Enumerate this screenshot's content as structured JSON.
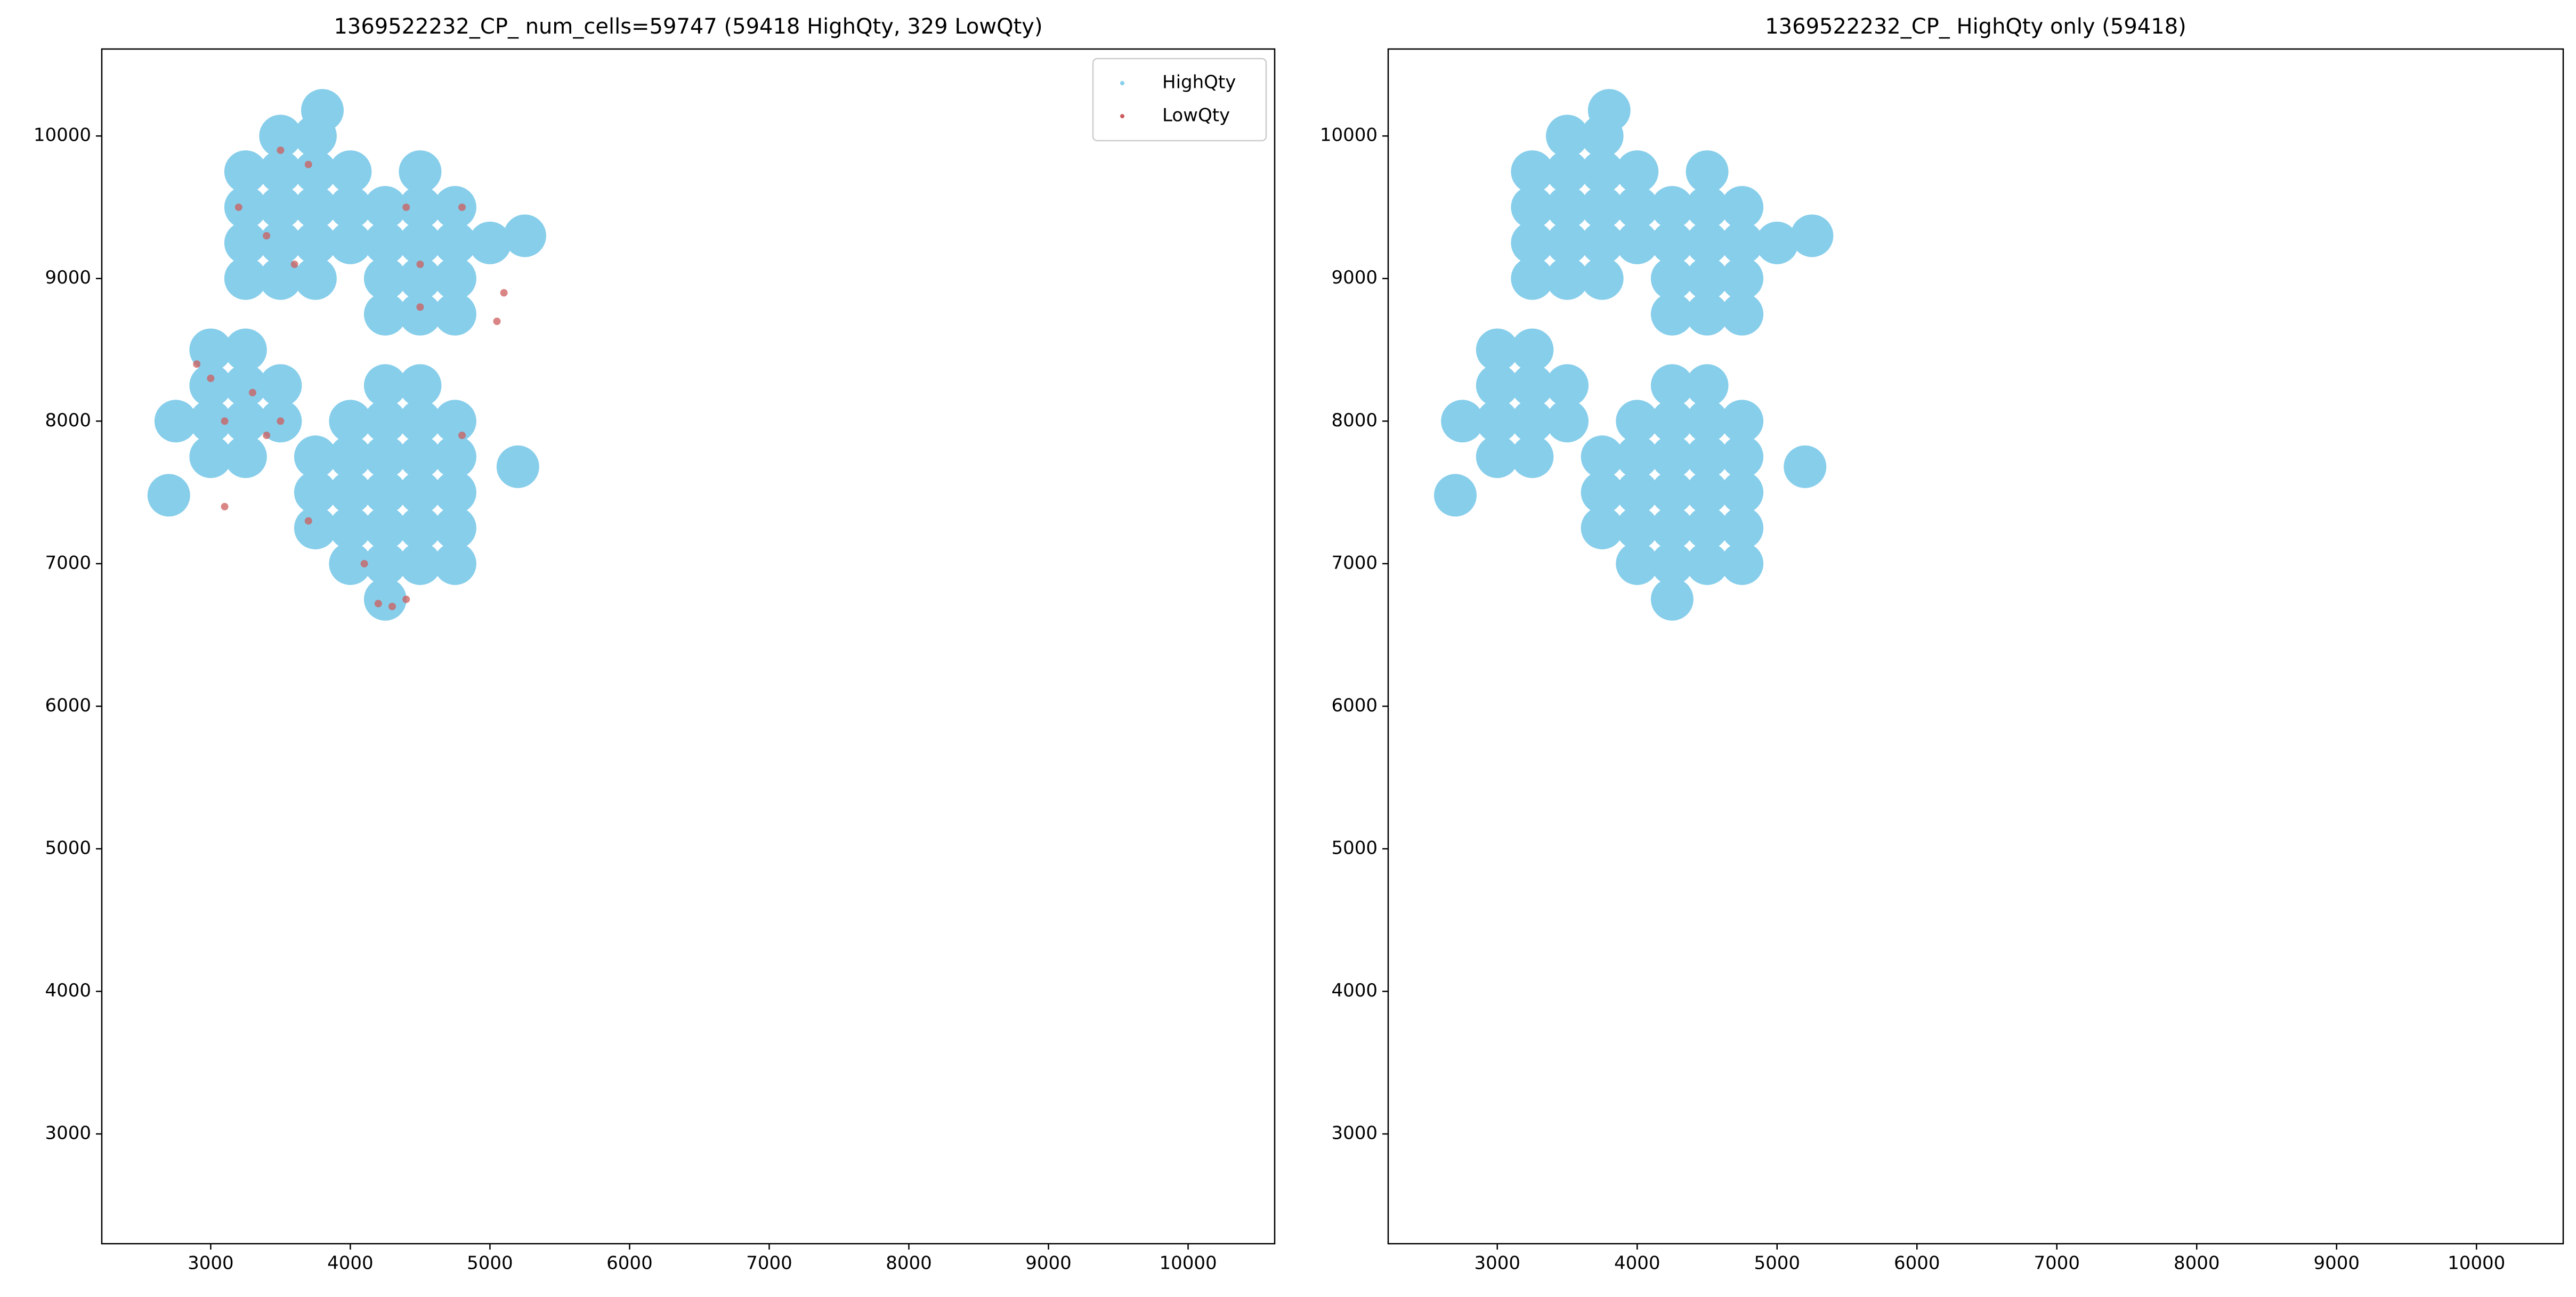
{
  "chart_data": [
    {
      "type": "scatter",
      "title": "1369522232_CP_ num_cells=59747 (59418 HighQty, 329 LowQty)",
      "xlim": [
        2220,
        10620
      ],
      "ylim": [
        2230,
        10610
      ],
      "xticks": [
        3000,
        4000,
        5000,
        6000,
        7000,
        8000,
        9000,
        10000
      ],
      "yticks": [
        3000,
        4000,
        5000,
        6000,
        7000,
        8000,
        9000,
        10000
      ],
      "legend": "upper right",
      "series": [
        {
          "name": "HighQty",
          "color": "#87ceeb",
          "x": [
            3250,
            3500,
            3750,
            3250,
            3500,
            3750,
            4000,
            3250,
            3500,
            3750,
            4000,
            3250,
            3500,
            3750,
            4000,
            3500,
            3750,
            4250,
            4500,
            4750,
            4250,
            4500,
            4750,
            4250,
            4500,
            4750,
            5000,
            4250,
            4500,
            4750,
            4500,
            3000,
            3250,
            2750,
            3000,
            3250,
            3500,
            3000,
            3250,
            3500,
            3000,
            3250,
            4250,
            4000,
            4250,
            4500,
            4750,
            3750,
            4000,
            4250,
            4500,
            4750,
            3750,
            4000,
            4250,
            4500,
            4750,
            3750,
            4000,
            4250,
            4500,
            4750,
            4000,
            4250,
            4500,
            4750,
            4250,
            4500,
            2700,
            3800,
            5200,
            5250
          ],
          "values": [
            9000,
            9000,
            9000,
            9250,
            9250,
            9250,
            9250,
            9500,
            9500,
            9500,
            9500,
            9750,
            9750,
            9750,
            9750,
            10000,
            10000,
            8750,
            8750,
            8750,
            9000,
            9000,
            9000,
            9250,
            9250,
            9250,
            9250,
            9500,
            9500,
            9500,
            9750,
            7750,
            7750,
            8000,
            8000,
            8000,
            8000,
            8250,
            8250,
            8250,
            8500,
            8500,
            6750,
            7000,
            7000,
            7000,
            7000,
            7250,
            7250,
            7250,
            7250,
            7250,
            7500,
            7500,
            7500,
            7500,
            7500,
            7750,
            7750,
            7750,
            7750,
            7750,
            8000,
            8000,
            8000,
            8000,
            8250,
            8250,
            7480,
            10180,
            7680,
            9300
          ]
        },
        {
          "name": "LowQty",
          "color": "#cd5c5c",
          "x": [
            3200,
            3400,
            3600,
            3700,
            3500,
            4500,
            4500,
            4800,
            5100,
            5050,
            4400,
            3300,
            3100,
            3500,
            3400,
            3100,
            3700,
            4300,
            4200,
            4400,
            4800,
            4100,
            2900,
            3000
          ],
          "values": [
            9500,
            9300,
            9100,
            9800,
            9900,
            9100,
            8800,
            9500,
            8900,
            8700,
            9500,
            8200,
            8000,
            8000,
            7900,
            7400,
            7300,
            6700,
            6720,
            6750,
            7900,
            7000,
            8400,
            8300
          ]
        }
      ]
    },
    {
      "type": "scatter",
      "title": "1369522232_CP_ HighQty only (59418)",
      "xlim": [
        2220,
        10620
      ],
      "ylim": [
        2230,
        10610
      ],
      "xticks": [
        3000,
        4000,
        5000,
        6000,
        7000,
        8000,
        9000,
        10000
      ],
      "yticks": [
        3000,
        4000,
        5000,
        6000,
        7000,
        8000,
        9000,
        10000
      ],
      "series": [
        {
          "color": "#87ceeb",
          "x": [
            3250,
            3500,
            3750,
            3250,
            3500,
            3750,
            4000,
            3250,
            3500,
            3750,
            4000,
            3250,
            3500,
            3750,
            4000,
            3500,
            3750,
            4250,
            4500,
            4750,
            4250,
            4500,
            4750,
            4250,
            4500,
            4750,
            5000,
            4250,
            4500,
            4750,
            4500,
            3000,
            3250,
            2750,
            3000,
            3250,
            3500,
            3000,
            3250,
            3500,
            3000,
            3250,
            4250,
            4000,
            4250,
            4500,
            4750,
            3750,
            4000,
            4250,
            4500,
            4750,
            3750,
            4000,
            4250,
            4500,
            4750,
            3750,
            4000,
            4250,
            4500,
            4750,
            4000,
            4250,
            4500,
            4750,
            4250,
            4500,
            2700,
            3800,
            5200,
            5250
          ],
          "values": [
            9000,
            9000,
            9000,
            9250,
            9250,
            9250,
            9250,
            9500,
            9500,
            9500,
            9500,
            9750,
            9750,
            9750,
            9750,
            10000,
            10000,
            8750,
            8750,
            8750,
            9000,
            9000,
            9000,
            9250,
            9250,
            9250,
            9250,
            9500,
            9500,
            9500,
            9750,
            7750,
            7750,
            8000,
            8000,
            8000,
            8000,
            8250,
            8250,
            8250,
            8500,
            8500,
            6750,
            7000,
            7000,
            7000,
            7000,
            7250,
            7250,
            7250,
            7250,
            7250,
            7500,
            7500,
            7500,
            7500,
            7500,
            7750,
            7750,
            7750,
            7750,
            7750,
            8000,
            8000,
            8000,
            8000,
            8250,
            8250,
            7480,
            10180,
            7680,
            9300
          ]
        }
      ]
    }
  ]
}
